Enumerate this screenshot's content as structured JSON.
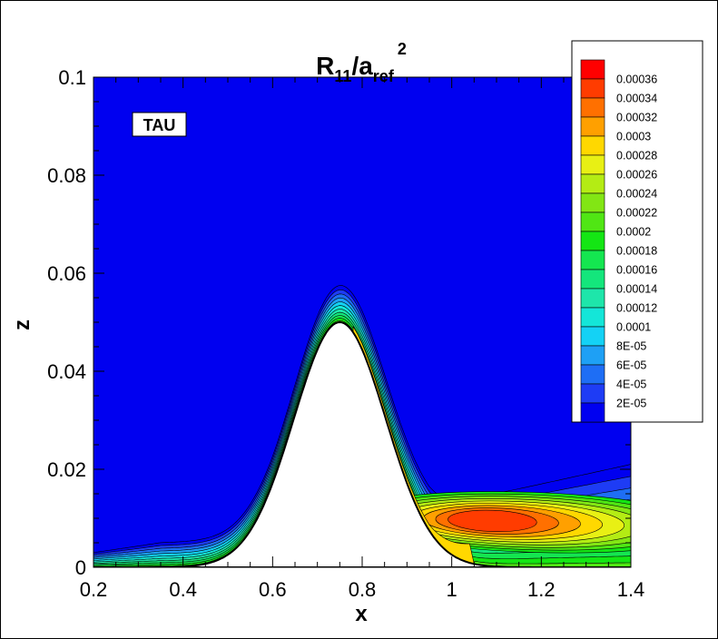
{
  "chart_data": {
    "type": "heatmap",
    "subtype": "filled-contour",
    "title": {
      "base": "R",
      "sub1": "11",
      "mid": "/a",
      "sub2": "ref",
      "sup": "2"
    },
    "xlabel": "x",
    "ylabel": "z",
    "xlim": [
      0.2,
      1.4
    ],
    "ylim": [
      0,
      0.1
    ],
    "xticks": [
      "0.2",
      "0.4",
      "0.6",
      "0.8",
      "1",
      "1.2",
      "1.4"
    ],
    "yticks": [
      "0",
      "0.02",
      "0.04",
      "0.06",
      "0.08",
      "0.1"
    ],
    "annotation": "TAU",
    "grid": false,
    "legend_placement": "top-right",
    "legend_levels": [
      "0.00036",
      "0.00034",
      "0.00032",
      "0.0003",
      "0.00028",
      "0.00026",
      "0.00024",
      "0.00022",
      "0.0002",
      "0.00018",
      "0.00016",
      "0.00014",
      "0.00012",
      "0.0001",
      "8E-05",
      "6E-05",
      "4E-05",
      "2E-05"
    ],
    "legend_colors": [
      "#ff0000",
      "#ff3c00",
      "#ff7000",
      "#ffa000",
      "#ffd800",
      "#e8f014",
      "#b4ec14",
      "#82e614",
      "#50e614",
      "#14e614",
      "#14e650",
      "#14e67c",
      "#1ee6aa",
      "#14e6d8",
      "#14d2f5",
      "#1ea0f5",
      "#1e6ef5",
      "#1e3cf5",
      "#0000f0"
    ],
    "background_color": "#0000f0",
    "peak_region": {
      "x": 1.08,
      "z": 0.01,
      "value_range": "> 0.00036"
    },
    "hill": {
      "crest_x": 0.75,
      "crest_z": 0.05
    }
  }
}
